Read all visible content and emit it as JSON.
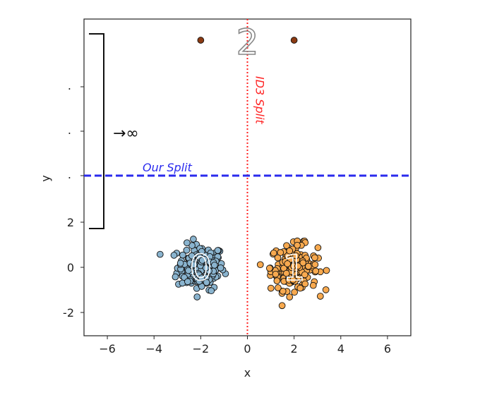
{
  "chart_data": {
    "type": "scatter",
    "xlabel": "x",
    "ylabel": "y",
    "xlim": [
      -7,
      7
    ],
    "ylim_lower": [
      -3,
      3
    ],
    "y_axis_broken": true,
    "x_ticks": [
      -6,
      -4,
      -2,
      0,
      2,
      4,
      6
    ],
    "x_tick_labels": [
      "−6",
      "−4",
      "−2",
      "0",
      "2",
      "4",
      "6"
    ],
    "y_ticks": [
      -2,
      0,
      2
    ],
    "y_tick_labels": [
      "-2",
      "0",
      "2"
    ],
    "upper_region_tick_labels": [
      ".",
      ".",
      "."
    ],
    "clusters": [
      {
        "label": "0",
        "center": [
          -2,
          0
        ],
        "spread": 0.5,
        "count": 180,
        "color": "#8ab4cf"
      },
      {
        "label": "1",
        "center": [
          2,
          0
        ],
        "spread": 0.5,
        "count": 180,
        "color": "#f7a94f"
      }
    ],
    "far_cluster": {
      "label": "2",
      "points_x": [
        -2,
        2
      ],
      "color": "#8b3a12"
    },
    "infinity_marker": "→∞",
    "splits": [
      {
        "name": "ID3 Split",
        "orientation": "vertical",
        "x": 0,
        "color": "#ff2222",
        "style": "dotted"
      },
      {
        "name": "Our Split",
        "orientation": "horizontal",
        "position": "between y=3 and infinity",
        "color": "#2a2aee",
        "style": "dashed"
      }
    ],
    "grid": false
  }
}
